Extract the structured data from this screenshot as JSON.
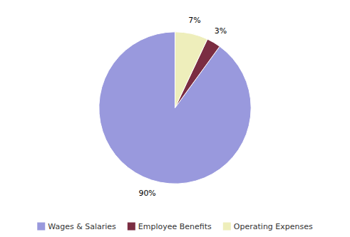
{
  "chart_data": {
    "type": "pie",
    "categories": [
      "Wages & Salaries",
      "Employee Benefits",
      "Operating Expenses"
    ],
    "values": [
      90,
      3,
      7
    ],
    "value_labels": [
      "90%",
      "3%",
      "7%"
    ],
    "colors": [
      "#9999dd",
      "#7b2d42",
      "#eeeebb"
    ],
    "data_labels": true,
    "legend": "bottom"
  }
}
